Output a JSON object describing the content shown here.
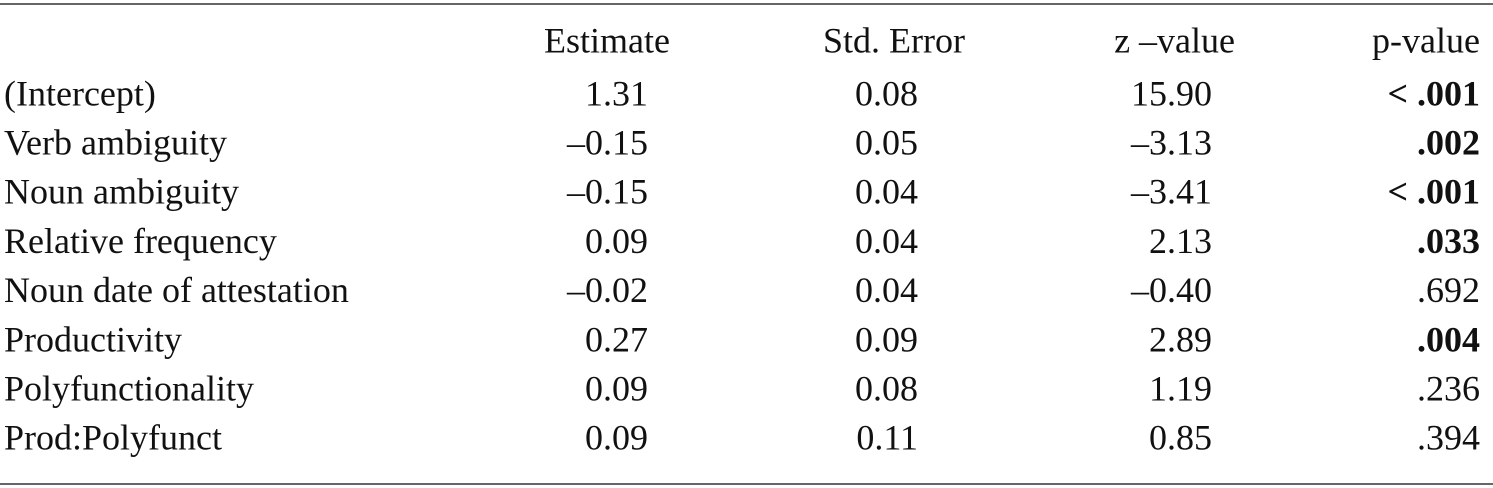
{
  "table": {
    "header": [
      "Estimate",
      "Std. Error",
      "z –value",
      "p-value"
    ],
    "rows": [
      {
        "term": "(Intercept)",
        "estimate": "1.31",
        "se": "0.08",
        "z": "15.90",
        "p": {
          "text": "< .001",
          "bold": true
        }
      },
      {
        "term": "Verb ambiguity",
        "estimate": "–0.15",
        "se": "0.05",
        "z": "–3.13",
        "p": {
          "text": ".002",
          "bold": true
        }
      },
      {
        "term": "Noun ambiguity",
        "estimate": "–0.15",
        "se": "0.04",
        "z": "–3.41",
        "p": {
          "text": "< .001",
          "bold": true
        }
      },
      {
        "term": "Relative frequency",
        "estimate": "0.09",
        "se": "0.04",
        "z": "2.13",
        "p": {
          "text": ".033",
          "bold": true
        }
      },
      {
        "term": "Noun date of attestation",
        "estimate": "–0.02",
        "se": "0.04",
        "z": "–0.40",
        "p": {
          "text": ".692",
          "bold": false
        }
      },
      {
        "term": "Productivity",
        "estimate": "0.27",
        "se": "0.09",
        "z": "2.89",
        "p": {
          "text": ".004",
          "bold": true
        }
      },
      {
        "term": "Polyfunctionality",
        "estimate": "0.09",
        "se": "0.08",
        "z": "1.19",
        "p": {
          "text": ".236",
          "bold": false
        }
      },
      {
        "term": "Prod:Polyfunct",
        "estimate": "0.09",
        "se": "0.11",
        "z": "0.85",
        "p": {
          "text": ".394",
          "bold": false
        }
      }
    ]
  }
}
